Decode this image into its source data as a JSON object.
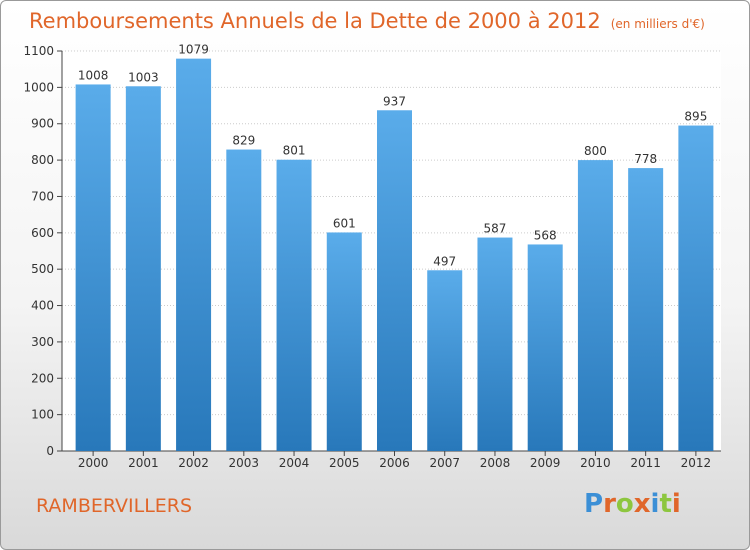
{
  "title": "Remboursements Annuels de la Dette de 2000 à 2012",
  "subtitle": "(en milliers d'€)",
  "commune": "RAMBERVILLERS",
  "logo": {
    "text": "Proxiti",
    "letters": [
      {
        "ch": "P",
        "color": "#3b8fd6"
      },
      {
        "ch": "r",
        "color": "#e0662a"
      },
      {
        "ch": "o",
        "color": "#8dc63f"
      },
      {
        "ch": "x",
        "color": "#e0662a"
      },
      {
        "ch": "i",
        "color": "#3b8fd6"
      },
      {
        "ch": "t",
        "color": "#8dc63f"
      },
      {
        "ch": "i",
        "color": "#e0662a"
      }
    ]
  },
  "colors": {
    "title": "#e0662a",
    "bar_top": "#5aacea",
    "bar_bottom": "#2878ba",
    "grid": "#cccccc"
  },
  "chart_data": {
    "type": "bar",
    "categories": [
      "2000",
      "2001",
      "2002",
      "2003",
      "2004",
      "2005",
      "2006",
      "2007",
      "2008",
      "2009",
      "2010",
      "2011",
      "2012"
    ],
    "values": [
      1008,
      1003,
      1079,
      829,
      801,
      601,
      937,
      497,
      587,
      568,
      800,
      778,
      895
    ],
    "ylim": [
      0,
      1100
    ],
    "yticks": [
      0,
      100,
      200,
      300,
      400,
      500,
      600,
      700,
      800,
      900,
      1000,
      1100
    ],
    "grid": true,
    "data_labels": true
  }
}
